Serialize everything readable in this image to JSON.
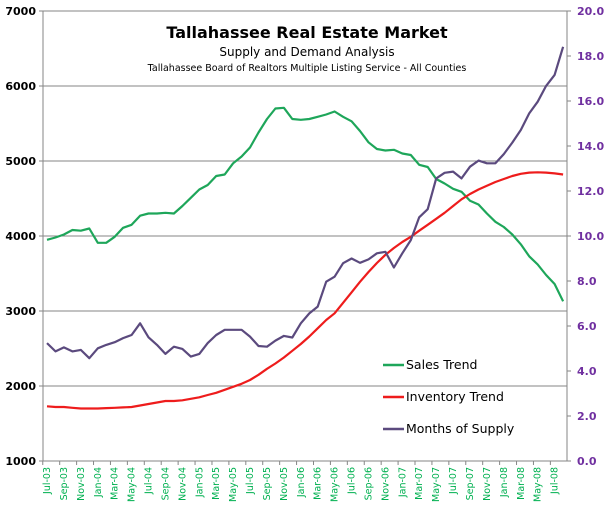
{
  "chart_data": {
    "type": "line",
    "title": "Tallahassee Real Estate Market",
    "subtitle": "Supply and Demand Analysis",
    "subtitle2": "Tallahassee Board of Realtors Multiple Listing Service - All Counties",
    "x": [
      "Jul-03",
      "Aug-03",
      "Sep-03",
      "Oct-03",
      "Nov-03",
      "Dec-03",
      "Jan-04",
      "Feb-04",
      "Mar-04",
      "Apr-04",
      "May-04",
      "Jun-04",
      "Jul-04",
      "Aug-04",
      "Sep-04",
      "Oct-04",
      "Nov-04",
      "Dec-04",
      "Jan-05",
      "Feb-05",
      "Mar-05",
      "Apr-05",
      "May-05",
      "Jun-05",
      "Jul-05",
      "Aug-05",
      "Sep-05",
      "Oct-05",
      "Nov-05",
      "Dec-05",
      "Jan-06",
      "Feb-06",
      "Mar-06",
      "Apr-06",
      "May-06",
      "Jun-06",
      "Jul-06",
      "Aug-06",
      "Sep-06",
      "Oct-06",
      "Nov-06",
      "Dec-06",
      "Jan-07",
      "Feb-07",
      "Mar-07",
      "Apr-07",
      "May-07",
      "Jun-07",
      "Jul-07",
      "Aug-07",
      "Sep-07",
      "Oct-07",
      "Nov-07",
      "Dec-07",
      "Jan-08",
      "Feb-08",
      "Mar-08",
      "Apr-08",
      "May-08",
      "Jun-08",
      "Jul-08",
      "Aug-08"
    ],
    "x_tick_labels": [
      "Jul-03",
      "Sep-03",
      "Nov-03",
      "Jan-04",
      "Mar-04",
      "May-04",
      "Jul-04",
      "Sep-04",
      "Nov-04",
      "Jan-05",
      "Mar-05",
      "May-05",
      "Jul-05",
      "Sep-05",
      "Nov-05",
      "Jan-06",
      "Mar-06",
      "May-06",
      "Jul-06",
      "Sep-06",
      "Nov-06",
      "Jan-07",
      "Mar-07",
      "May-07",
      "Jul-07",
      "Sep-07",
      "Nov-07",
      "Jan-08",
      "Mar-08",
      "May-08",
      "Jul-08"
    ],
    "y_left": {
      "range": [
        1000,
        7000
      ],
      "ticks": [
        "1000",
        "2000",
        "3000",
        "4000",
        "5000",
        "6000",
        "7000"
      ]
    },
    "y_right": {
      "range": [
        0,
        20
      ],
      "ticks": [
        "0.0",
        "2.0",
        "4.0",
        "6.0",
        "8.0",
        "10.0",
        "12.0",
        "14.0",
        "16.0",
        "18.0",
        "20.0"
      ],
      "color": "#7030a0"
    },
    "grid": "horizontal",
    "legend_position": "bottom-right",
    "x_label_color": "#00b050",
    "series": [
      {
        "name": "Sales Trend",
        "axis": "left",
        "color": "#1ea65a",
        "values": [
          3950,
          3980,
          4020,
          4080,
          4070,
          4100,
          3910,
          3910,
          3990,
          4110,
          4150,
          4270,
          4300,
          4300,
          4310,
          4300,
          4400,
          4510,
          4620,
          4680,
          4800,
          4820,
          4970,
          5060,
          5180,
          5380,
          5560,
          5700,
          5710,
          5560,
          5550,
          5560,
          5590,
          5620,
          5660,
          5590,
          5530,
          5400,
          5250,
          5160,
          5140,
          5150,
          5100,
          5080,
          4950,
          4920,
          4760,
          4700,
          4630,
          4590,
          4470,
          4420,
          4300,
          4190,
          4120,
          4020,
          3890,
          3730,
          3620,
          3480,
          3360,
          3130
        ]
      },
      {
        "name": "Inventory Trend",
        "axis": "left",
        "color": "#ee1c1c",
        "values": [
          1730,
          1720,
          1720,
          1710,
          1700,
          1700,
          1700,
          1705,
          1710,
          1715,
          1720,
          1740,
          1760,
          1780,
          1800,
          1800,
          1810,
          1830,
          1850,
          1880,
          1910,
          1950,
          1990,
          2030,
          2080,
          2150,
          2230,
          2300,
          2380,
          2470,
          2560,
          2660,
          2770,
          2880,
          2970,
          3110,
          3250,
          3390,
          3520,
          3640,
          3750,
          3840,
          3920,
          3990,
          4070,
          4150,
          4230,
          4310,
          4400,
          4490,
          4560,
          4620,
          4670,
          4720,
          4760,
          4800,
          4830,
          4845,
          4850,
          4845,
          4835,
          4820
        ]
      },
      {
        "name": "Months of Supply",
        "axis": "right",
        "color": "#5b4a7e",
        "values": [
          5.24,
          4.87,
          5.05,
          4.87,
          4.94,
          4.57,
          5.01,
          5.16,
          5.28,
          5.46,
          5.6,
          6.12,
          5.5,
          5.16,
          4.76,
          5.08,
          4.98,
          4.64,
          4.76,
          5.24,
          5.6,
          5.83,
          5.83,
          5.83,
          5.53,
          5.11,
          5.08,
          5.35,
          5.56,
          5.49,
          6.12,
          6.56,
          6.86,
          7.97,
          8.19,
          8.79,
          9.0,
          8.81,
          8.96,
          9.23,
          9.3,
          8.6,
          9.23,
          9.82,
          10.83,
          11.19,
          12.56,
          12.81,
          12.86,
          12.56,
          13.08,
          13.35,
          13.23,
          13.23,
          13.64,
          14.15,
          14.71,
          15.45,
          15.97,
          16.67,
          17.16,
          18.41
        ]
      }
    ]
  }
}
